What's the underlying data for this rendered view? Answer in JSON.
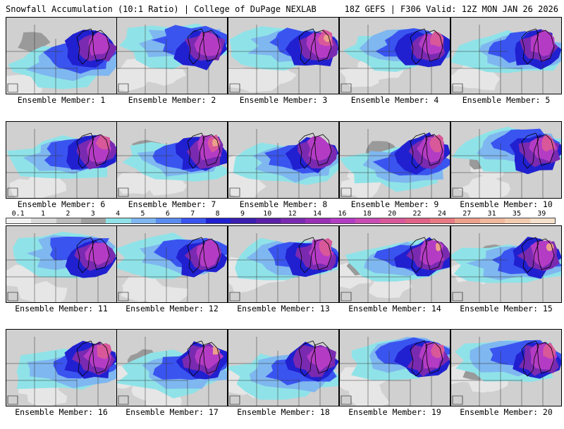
{
  "header": {
    "title_left": "Snowfall Accumulation (10:1 Ratio) | College of DuPage NEXLAB",
    "title_right": "18Z GEFS | F306 Valid: 12Z MON JAN 26 2026"
  },
  "legend": {
    "labels": [
      "0.1",
      "1",
      "2",
      "3",
      "4",
      "5",
      "6",
      "7",
      "8",
      "9",
      "10",
      "12",
      "14",
      "16",
      "18",
      "20",
      "22",
      "24",
      "27",
      "31",
      "35",
      "39"
    ],
    "colors": [
      "#f2f2f2",
      "#d9d9d9",
      "#bdbdbd",
      "#a0a0a0",
      "#8fe3e8",
      "#7fb7f0",
      "#5b8cf0",
      "#3a54f0",
      "#2020d0",
      "#3a1fb0",
      "#5a20a8",
      "#7a2ab0",
      "#9a30b8",
      "#b43cc4",
      "#c84cb4",
      "#d8589a",
      "#e06488",
      "#e87a84",
      "#eda08c",
      "#f0b89c",
      "#f3ccb0",
      "#f7e0cc"
    ]
  },
  "members": [
    {
      "caption": "Ensemble Member: 1"
    },
    {
      "caption": "Ensemble Member: 2"
    },
    {
      "caption": "Ensemble Member: 3"
    },
    {
      "caption": "Ensemble Member: 4"
    },
    {
      "caption": "Ensemble Member: 5"
    },
    {
      "caption": "Ensemble Member: 6"
    },
    {
      "caption": "Ensemble Member: 7"
    },
    {
      "caption": "Ensemble Member: 8"
    },
    {
      "caption": "Ensemble Member: 9"
    },
    {
      "caption": "Ensemble Member: 10"
    },
    {
      "caption": "Ensemble Member: 11"
    },
    {
      "caption": "Ensemble Member: 12"
    },
    {
      "caption": "Ensemble Member: 13"
    },
    {
      "caption": "Ensemble Member: 14"
    },
    {
      "caption": "Ensemble Member: 15"
    },
    {
      "caption": "Ensemble Member: 16"
    },
    {
      "caption": "Ensemble Member: 17"
    },
    {
      "caption": "Ensemble Member: 18"
    },
    {
      "caption": "Ensemble Member: 19"
    },
    {
      "caption": "Ensemble Member: 20"
    }
  ],
  "map_colors": {
    "background": "#d0d0d0",
    "light_gray": "#e6e6e6",
    "dark_gray": "#9a9a9a",
    "cyan": "#8fe3e8",
    "light_blue": "#7fb7f0",
    "blue": "#3a54f0",
    "deep_blue": "#2020d0",
    "purple": "#7a2ab0",
    "magenta": "#b43cc4",
    "pink": "#d8589a",
    "peach": "#eda08c",
    "border": "#000000"
  }
}
